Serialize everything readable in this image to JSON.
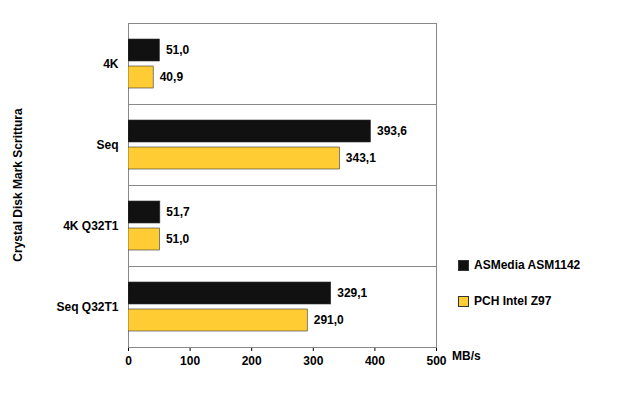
{
  "chart_data": {
    "type": "bar",
    "orientation": "horizontal",
    "ylabel": "Crystal Disk Mark Scrittura",
    "xlabel": "MB/s",
    "categories": [
      "4K",
      "Seq",
      "4K Q32T1",
      "Seq Q32T1"
    ],
    "series": [
      {
        "name": "ASMedia ASM1142",
        "color": "#111111",
        "values": [
          51.0,
          393.6,
          51.7,
          329.1
        ],
        "value_labels": [
          "51,0",
          "393,6",
          "51,7",
          "329,1"
        ]
      },
      {
        "name": "PCH Intel Z97",
        "color": "#FFCC33",
        "values": [
          40.9,
          343.1,
          51.0,
          291.0
        ],
        "value_labels": [
          "40,9",
          "343,1",
          "51,0",
          "291,0"
        ]
      }
    ],
    "xlim": [
      0,
      500
    ],
    "xticks": [
      0,
      100,
      200,
      300,
      400,
      500
    ],
    "grid": false,
    "legend": "right",
    "data_labels": true
  }
}
